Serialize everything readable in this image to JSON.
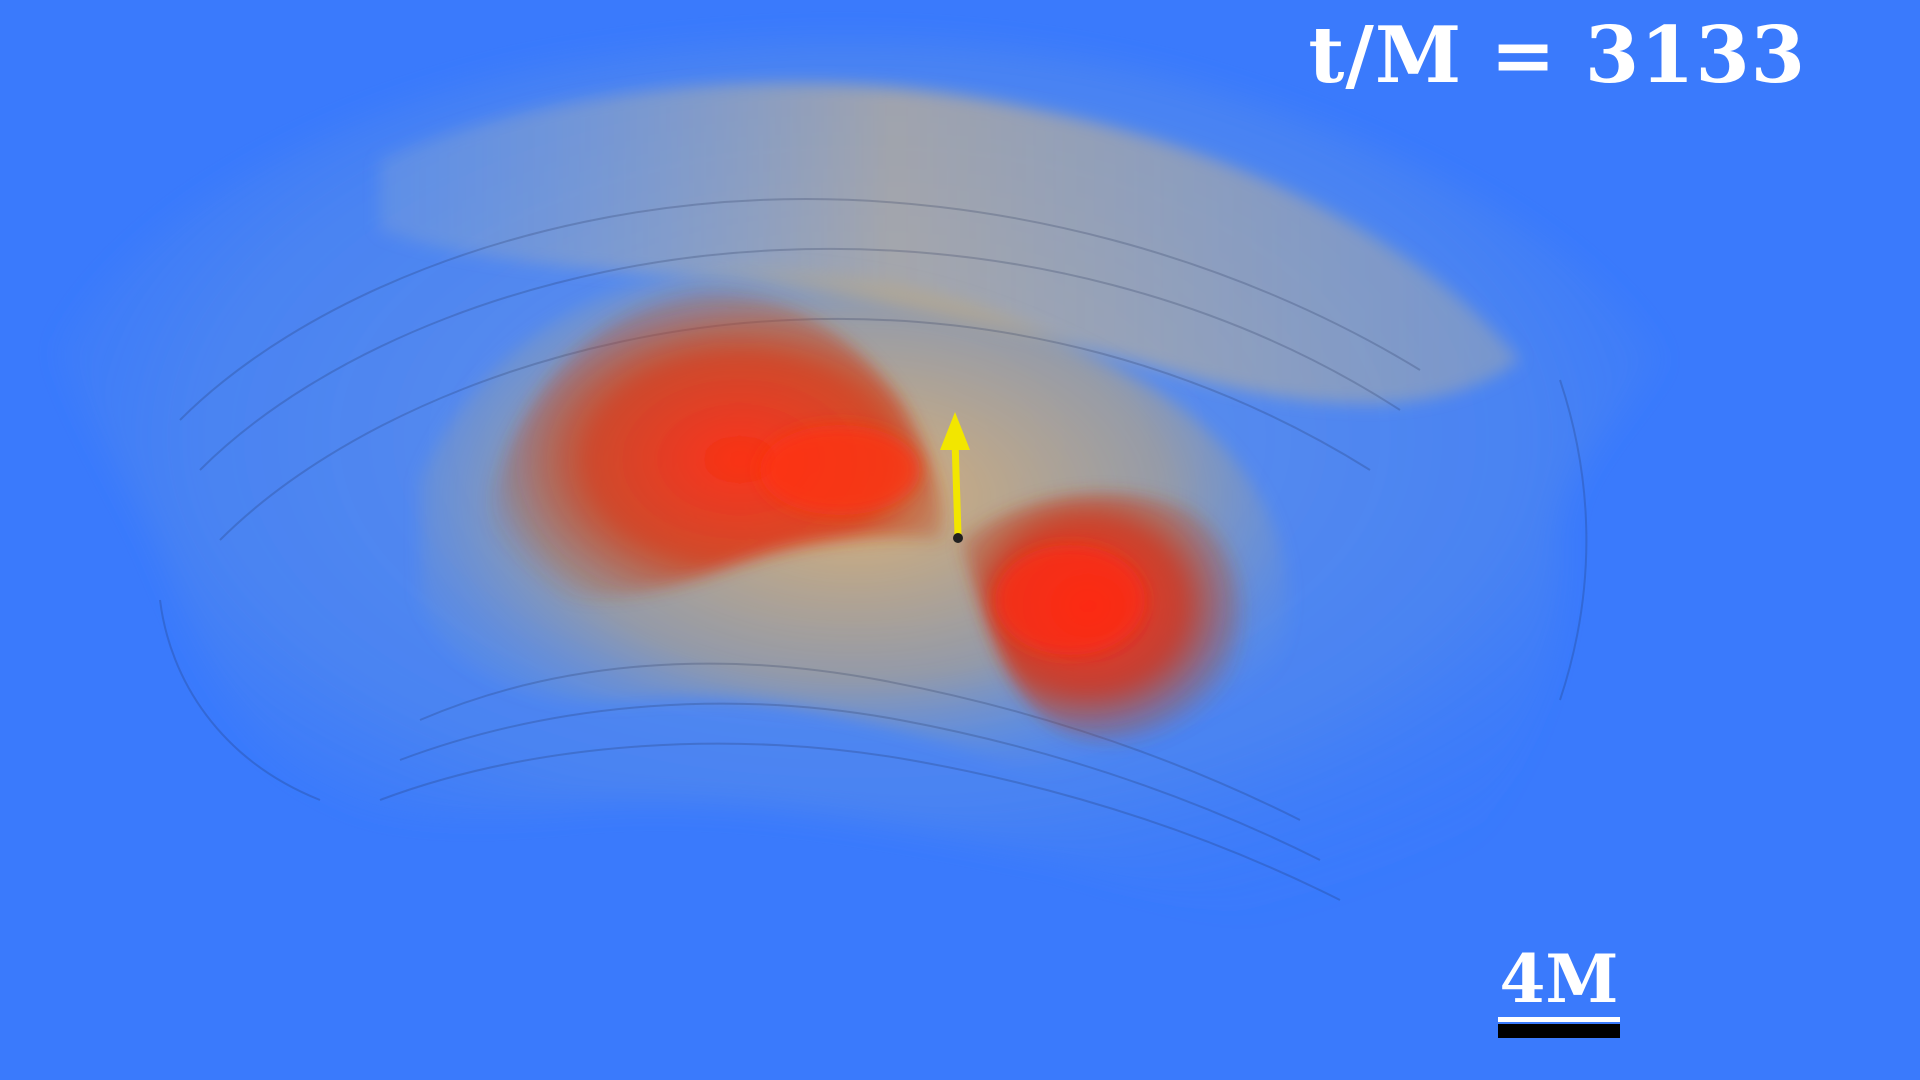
{
  "annotation": {
    "time_label": "t/M = 3133",
    "scale_label": "4M"
  },
  "colors": {
    "background": "#3a7afc",
    "outer_envelope": "#5a90e6",
    "mid_layer": "#d8b070",
    "inner_core": "#e8301a",
    "spin_arrow": "#f2e600",
    "scale_bar": "#000000",
    "text": "#ffffff"
  },
  "icons": {
    "spin_arrow": "arrow-up-icon"
  }
}
